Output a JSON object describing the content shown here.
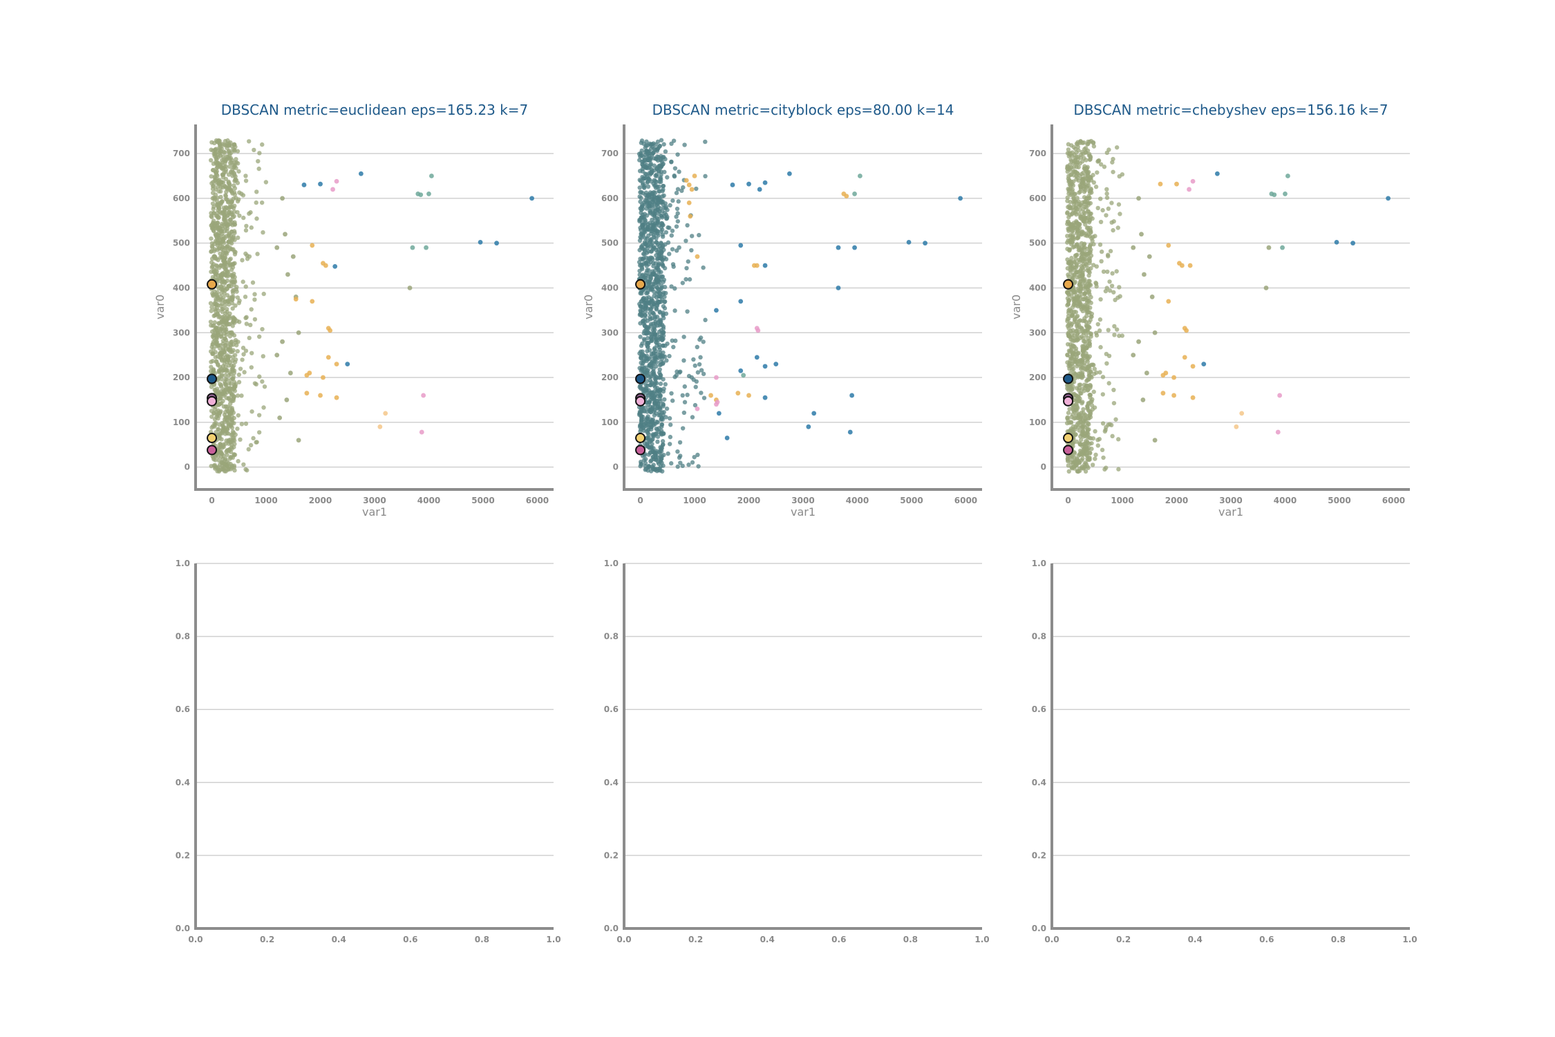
{
  "chart_data": [
    {
      "type": "scatter",
      "title": "DBSCAN metric=euclidean eps=165.23 k=7",
      "xlabel": "var1",
      "ylabel": "var0",
      "xlim": [
        -300,
        6300
      ],
      "ylim": [
        -50,
        765
      ],
      "xticks": [
        0,
        1000,
        2000,
        3000,
        4000,
        5000,
        6000
      ],
      "yticks": [
        0,
        100,
        200,
        300,
        400,
        500,
        600,
        700
      ],
      "grid": "horizontal",
      "dense_band": {
        "color": "#9aa57a",
        "x_range": [
          -20,
          420
        ],
        "y_range": [
          -10,
          730
        ],
        "count": 1100,
        "spread_x": 1000,
        "spread_count": 140
      },
      "series": [
        {
          "color": "#9aa57a",
          "points": [
            [
              1300,
              600
            ],
            [
              1350,
              520
            ],
            [
              1200,
              490
            ],
            [
              1500,
              470
            ],
            [
              1400,
              430
            ],
            [
              1550,
              380
            ],
            [
              1600,
              300
            ],
            [
              1300,
              280
            ],
            [
              1200,
              250
            ],
            [
              1450,
              210
            ],
            [
              1380,
              150
            ],
            [
              1600,
              60
            ],
            [
              1250,
              110
            ],
            [
              3650,
              400
            ]
          ]
        },
        {
          "color": "#2d7aa8",
          "points": [
            [
              1700,
              630
            ],
            [
              2000,
              632
            ],
            [
              2750,
              655
            ],
            [
              4950,
              502
            ],
            [
              5250,
              500
            ],
            [
              5900,
              600
            ],
            [
              2270,
              448
            ],
            [
              2500,
              230
            ]
          ]
        },
        {
          "color": "#6fa89a",
          "points": [
            [
              3800,
              610
            ],
            [
              3850,
              608
            ],
            [
              4000,
              610
            ],
            [
              4050,
              650
            ],
            [
              3700,
              490
            ],
            [
              3950,
              490
            ]
          ]
        },
        {
          "color": "#e8b054",
          "points": [
            [
              1850,
              495
            ],
            [
              2050,
              455
            ],
            [
              2100,
              450
            ],
            [
              1850,
              370
            ],
            [
              1550,
              375
            ],
            [
              2150,
              310
            ],
            [
              2180,
              305
            ],
            [
              1800,
              210
            ],
            [
              1750,
              205
            ],
            [
              2050,
              200
            ],
            [
              2150,
              245
            ],
            [
              2300,
              230
            ],
            [
              1750,
              165
            ],
            [
              2000,
              160
            ],
            [
              2300,
              155
            ]
          ]
        },
        {
          "color": "#f4c78a",
          "points": [
            [
              3200,
              120
            ],
            [
              3100,
              90
            ]
          ]
        },
        {
          "color": "#e89bc8",
          "points": [
            [
              2300,
              638
            ],
            [
              2230,
              620
            ],
            [
              3900,
              160
            ],
            [
              3870,
              78
            ]
          ]
        }
      ],
      "markers": [
        {
          "x": 0,
          "y": 408,
          "color": "#e8a84c"
        },
        {
          "x": 0,
          "y": 197,
          "color": "#1f5a8a"
        },
        {
          "x": 0,
          "y": 154,
          "color": "#8a5f8a"
        },
        {
          "x": 0,
          "y": 147,
          "color": "#f0b0d8"
        },
        {
          "x": 0,
          "y": 65,
          "color": "#f2d070"
        },
        {
          "x": 0,
          "y": 38,
          "color": "#c8609a"
        }
      ]
    },
    {
      "type": "scatter",
      "title": "DBSCAN metric=cityblock eps=80.00 k=14",
      "xlabel": "var1",
      "ylabel": "var0",
      "xlim": [
        -300,
        6300
      ],
      "ylim": [
        -50,
        765
      ],
      "xticks": [
        0,
        1000,
        2000,
        3000,
        4000,
        5000,
        6000
      ],
      "yticks": [
        0,
        100,
        200,
        300,
        400,
        500,
        600,
        700
      ],
      "grid": "horizontal",
      "dense_band": {
        "color": "#4f7f84",
        "x_range": [
          -20,
          420
        ],
        "y_range": [
          -10,
          730
        ],
        "count": 1100,
        "spread_x": 1200,
        "spread_count": 180
      },
      "series": [
        {
          "color": "#2d7aa8",
          "points": [
            [
              1700,
              630
            ],
            [
              2000,
              632
            ],
            [
              2200,
              620
            ],
            [
              2300,
              635
            ],
            [
              2750,
              655
            ],
            [
              1850,
              495
            ],
            [
              2300,
              450
            ],
            [
              3650,
              490
            ],
            [
              3950,
              490
            ],
            [
              4950,
              502
            ],
            [
              5250,
              500
            ],
            [
              5900,
              600
            ],
            [
              3650,
              400
            ],
            [
              1850,
              370
            ],
            [
              1400,
              350
            ],
            [
              2150,
              245
            ],
            [
              2500,
              230
            ],
            [
              2300,
              225
            ],
            [
              1450,
              120
            ],
            [
              1600,
              65
            ],
            [
              3200,
              120
            ],
            [
              3100,
              90
            ],
            [
              3900,
              160
            ],
            [
              3870,
              78
            ],
            [
              2300,
              155
            ],
            [
              1850,
              215
            ]
          ]
        },
        {
          "color": "#6fa89a",
          "points": [
            [
              4050,
              650
            ],
            [
              3950,
              610
            ],
            [
              1900,
              205
            ]
          ]
        },
        {
          "color": "#e8b054",
          "points": [
            [
              850,
              640
            ],
            [
              900,
              630
            ],
            [
              950,
              620
            ],
            [
              1000,
              650
            ],
            [
              900,
              590
            ],
            [
              920,
              560
            ],
            [
              1050,
              470
            ],
            [
              2100,
              450
            ],
            [
              2150,
              450
            ],
            [
              3750,
              610
            ],
            [
              3800,
              605
            ],
            [
              1300,
              160
            ],
            [
              1400,
              150
            ],
            [
              1800,
              165
            ],
            [
              2000,
              160
            ]
          ]
        },
        {
          "color": "#e89bc8",
          "points": [
            [
              2150,
              310
            ],
            [
              2170,
              305
            ],
            [
              1400,
              200
            ],
            [
              1400,
              140
            ],
            [
              1420,
              145
            ],
            [
              1050,
              130
            ]
          ]
        }
      ],
      "markers": [
        {
          "x": 0,
          "y": 408,
          "color": "#e8a84c"
        },
        {
          "x": 0,
          "y": 197,
          "color": "#1f5a8a"
        },
        {
          "x": 0,
          "y": 154,
          "color": "#8a5f8a"
        },
        {
          "x": 0,
          "y": 147,
          "color": "#f0b0d8"
        },
        {
          "x": 0,
          "y": 65,
          "color": "#f2d070"
        },
        {
          "x": 0,
          "y": 38,
          "color": "#c8609a"
        }
      ]
    },
    {
      "type": "scatter",
      "title": "DBSCAN metric=chebyshev eps=156.16 k=7",
      "xlabel": "var1",
      "ylabel": "var0",
      "xlim": [
        -300,
        6300
      ],
      "ylim": [
        -50,
        765
      ],
      "xticks": [
        0,
        1000,
        2000,
        3000,
        4000,
        5000,
        6000
      ],
      "yticks": [
        0,
        100,
        200,
        300,
        400,
        500,
        600,
        700
      ],
      "grid": "horizontal",
      "dense_band": {
        "color": "#9aa57a",
        "x_range": [
          -20,
          420
        ],
        "y_range": [
          -10,
          730
        ],
        "count": 1100,
        "spread_x": 1000,
        "spread_count": 140
      },
      "series": [
        {
          "color": "#9aa57a",
          "points": [
            [
              1300,
              600
            ],
            [
              1350,
              520
            ],
            [
              1200,
              490
            ],
            [
              1500,
              470
            ],
            [
              1400,
              430
            ],
            [
              1550,
              380
            ],
            [
              1600,
              300
            ],
            [
              1300,
              280
            ],
            [
              1200,
              250
            ],
            [
              1450,
              210
            ],
            [
              1380,
              150
            ],
            [
              1600,
              60
            ],
            [
              3650,
              400
            ],
            [
              3700,
              490
            ]
          ]
        },
        {
          "color": "#2d7aa8",
          "points": [
            [
              2750,
              655
            ],
            [
              4950,
              502
            ],
            [
              5250,
              500
            ],
            [
              5900,
              600
            ],
            [
              2500,
              230
            ]
          ]
        },
        {
          "color": "#6fa89a",
          "points": [
            [
              3750,
              610
            ],
            [
              3800,
              608
            ],
            [
              4000,
              610
            ],
            [
              4050,
              650
            ],
            [
              3950,
              490
            ]
          ]
        },
        {
          "color": "#e8b054",
          "points": [
            [
              1700,
              632
            ],
            [
              2000,
              632
            ],
            [
              1850,
              495
            ],
            [
              2050,
              455
            ],
            [
              2100,
              450
            ],
            [
              2250,
              450
            ],
            [
              1850,
              370
            ],
            [
              2150,
              310
            ],
            [
              2180,
              305
            ],
            [
              1800,
              210
            ],
            [
              1750,
              205
            ],
            [
              1950,
              200
            ],
            [
              2150,
              245
            ],
            [
              2300,
              225
            ],
            [
              1750,
              165
            ],
            [
              1950,
              160
            ],
            [
              2300,
              155
            ]
          ]
        },
        {
          "color": "#f4c78a",
          "points": [
            [
              3200,
              120
            ],
            [
              3100,
              90
            ]
          ]
        },
        {
          "color": "#e89bc8",
          "points": [
            [
              2300,
              638
            ],
            [
              2230,
              620
            ],
            [
              3900,
              160
            ],
            [
              3870,
              78
            ]
          ]
        }
      ],
      "markers": [
        {
          "x": 0,
          "y": 408,
          "color": "#e8a84c"
        },
        {
          "x": 0,
          "y": 197,
          "color": "#1f5a8a"
        },
        {
          "x": 0,
          "y": 154,
          "color": "#8a5f8a"
        },
        {
          "x": 0,
          "y": 147,
          "color": "#f0b0d8"
        },
        {
          "x": 0,
          "y": 65,
          "color": "#f2d070"
        },
        {
          "x": 0,
          "y": 38,
          "color": "#c8609a"
        }
      ]
    },
    {
      "type": "scatter",
      "title": "",
      "xlabel": "",
      "ylabel": "",
      "xlim": [
        0,
        1
      ],
      "ylim": [
        0,
        1
      ],
      "xticks": [
        "0.0",
        "0.2",
        "0.4",
        "0.6",
        "0.8",
        "1.0"
      ],
      "yticks": [
        "0.0",
        "0.2",
        "0.4",
        "0.6",
        "0.8",
        "1.0"
      ],
      "grid": "horizontal",
      "series": []
    },
    {
      "type": "scatter",
      "title": "",
      "xlabel": "",
      "ylabel": "",
      "xlim": [
        0,
        1
      ],
      "ylim": [
        0,
        1
      ],
      "xticks": [
        "0.0",
        "0.2",
        "0.4",
        "0.6",
        "0.8",
        "1.0"
      ],
      "yticks": [
        "0.0",
        "0.2",
        "0.4",
        "0.6",
        "0.8",
        "1.0"
      ],
      "grid": "horizontal",
      "series": []
    },
    {
      "type": "scatter",
      "title": "",
      "xlabel": "",
      "ylabel": "",
      "xlim": [
        0,
        1
      ],
      "ylim": [
        0,
        1
      ],
      "xticks": [
        "0.0",
        "0.2",
        "0.4",
        "0.6",
        "0.8",
        "1.0"
      ],
      "yticks": [
        "0.0",
        "0.2",
        "0.4",
        "0.6",
        "0.8",
        "1.0"
      ],
      "grid": "horizontal",
      "series": []
    }
  ]
}
